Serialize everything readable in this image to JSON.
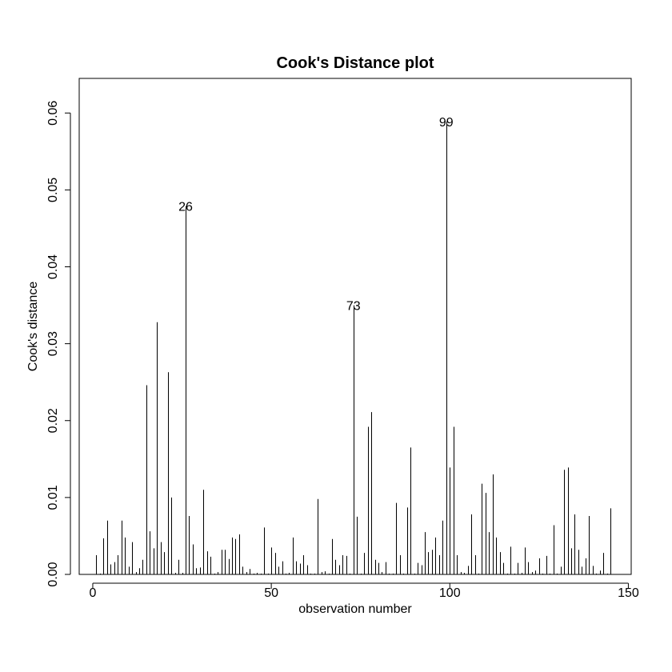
{
  "chart_data": {
    "type": "bar",
    "title": "Cook's Distance plot",
    "xlabel": "observation number",
    "ylabel": "Cook's distance",
    "xlim": [
      -3.8,
      150.8
    ],
    "ylim": [
      0,
      0.0645
    ],
    "x_ticks": [
      0,
      50,
      100,
      150
    ],
    "y_ticks": [
      0.0,
      0.01,
      0.02,
      0.03,
      0.04,
      0.05,
      0.06
    ],
    "x_tick_labels": [
      "0",
      "50",
      "100",
      "150"
    ],
    "y_tick_labels": [
      "0.00",
      "0.01",
      "0.02",
      "0.03",
      "0.04",
      "0.05",
      "0.06"
    ],
    "grid": false,
    "bar_style": "vertical lines (type h)",
    "x": [
      1,
      2,
      3,
      4,
      5,
      6,
      7,
      8,
      9,
      10,
      11,
      12,
      13,
      14,
      15,
      16,
      17,
      18,
      19,
      20,
      21,
      22,
      23,
      24,
      25,
      26,
      27,
      28,
      29,
      30,
      31,
      32,
      33,
      34,
      35,
      36,
      37,
      38,
      39,
      40,
      41,
      42,
      43,
      44,
      45,
      46,
      47,
      48,
      49,
      50,
      51,
      52,
      53,
      54,
      55,
      56,
      57,
      58,
      59,
      60,
      61,
      62,
      63,
      64,
      65,
      66,
      67,
      68,
      69,
      70,
      71,
      72,
      73,
      74,
      75,
      76,
      77,
      78,
      79,
      80,
      81,
      82,
      83,
      84,
      85,
      86,
      87,
      88,
      89,
      90,
      91,
      92,
      93,
      94,
      95,
      96,
      97,
      98,
      99,
      100,
      101,
      102,
      103,
      104,
      105,
      106,
      107,
      108,
      109,
      110,
      111,
      112,
      113,
      114,
      115,
      116,
      117,
      118,
      119,
      120,
      121,
      122,
      123,
      124,
      125,
      126,
      127,
      128,
      129,
      130,
      131,
      132,
      133,
      134,
      135,
      136,
      137,
      138,
      139,
      140,
      141,
      142,
      143,
      144,
      145
    ],
    "values": [
      0.0025,
      0.0001,
      0.0047,
      0.007,
      0.0013,
      0.0016,
      0.0025,
      0.007,
      0.0048,
      0.001,
      0.0042,
      0.0003,
      0.0008,
      0.0019,
      0.0246,
      0.0056,
      0.0034,
      0.0328,
      0.0042,
      0.0029,
      0.0263,
      0.01,
      0.0002,
      0.0019,
      0.0002,
      0.0479,
      0.0076,
      0.0039,
      0.0008,
      0.0009,
      0.011,
      0.003,
      0.0023,
      0.0001,
      0.0003,
      0.0032,
      0.0032,
      0.002,
      0.0048,
      0.0046,
      0.0052,
      0.001,
      0.0003,
      0.0007,
      0.0001,
      0.0002,
      0.0001,
      0.0061,
      0.0001,
      0.0035,
      0.0028,
      0.001,
      0.0017,
      0.0001,
      0.0002,
      0.0048,
      0.0017,
      0.0014,
      0.0025,
      0.0012,
      0.0001,
      0.0001,
      0.0098,
      0.0003,
      0.0004,
      0.0001,
      0.0046,
      0.0019,
      0.0012,
      0.0025,
      0.0024,
      0.0001,
      0.035,
      0.0075,
      0.0001,
      0.0028,
      0.0192,
      0.0211,
      0.0019,
      0.0015,
      0.0003,
      0.0016,
      0.0001,
      0.0001,
      0.0093,
      0.0025,
      0.0001,
      0.0087,
      0.0165,
      0.0001,
      0.0015,
      0.0012,
      0.0055,
      0.0029,
      0.0032,
      0.0048,
      0.0025,
      0.007,
      0.0589,
      0.0139,
      0.0192,
      0.0025,
      0.0003,
      0.0002,
      0.0011,
      0.0078,
      0.0025,
      0.0001,
      0.0118,
      0.0106,
      0.0055,
      0.013,
      0.0048,
      0.0029,
      0.0015,
      0.0001,
      0.0036,
      0.0001,
      0.0015,
      0.0002,
      0.0035,
      0.0016,
      0.0003,
      0.0005,
      0.0021,
      0.0001,
      0.0024,
      0.0001,
      0.0064,
      0.0001,
      0.001,
      0.0136,
      0.0139,
      0.0034,
      0.0078,
      0.0032,
      0.001,
      0.0021,
      0.0076,
      0.0011,
      0.0001,
      0.0005,
      0.0028,
      0.0001,
      0.0086
    ],
    "labeled_points": [
      {
        "x": 26,
        "label": "26"
      },
      {
        "x": 73,
        "label": "73"
      },
      {
        "x": 99,
        "label": "99"
      }
    ]
  }
}
